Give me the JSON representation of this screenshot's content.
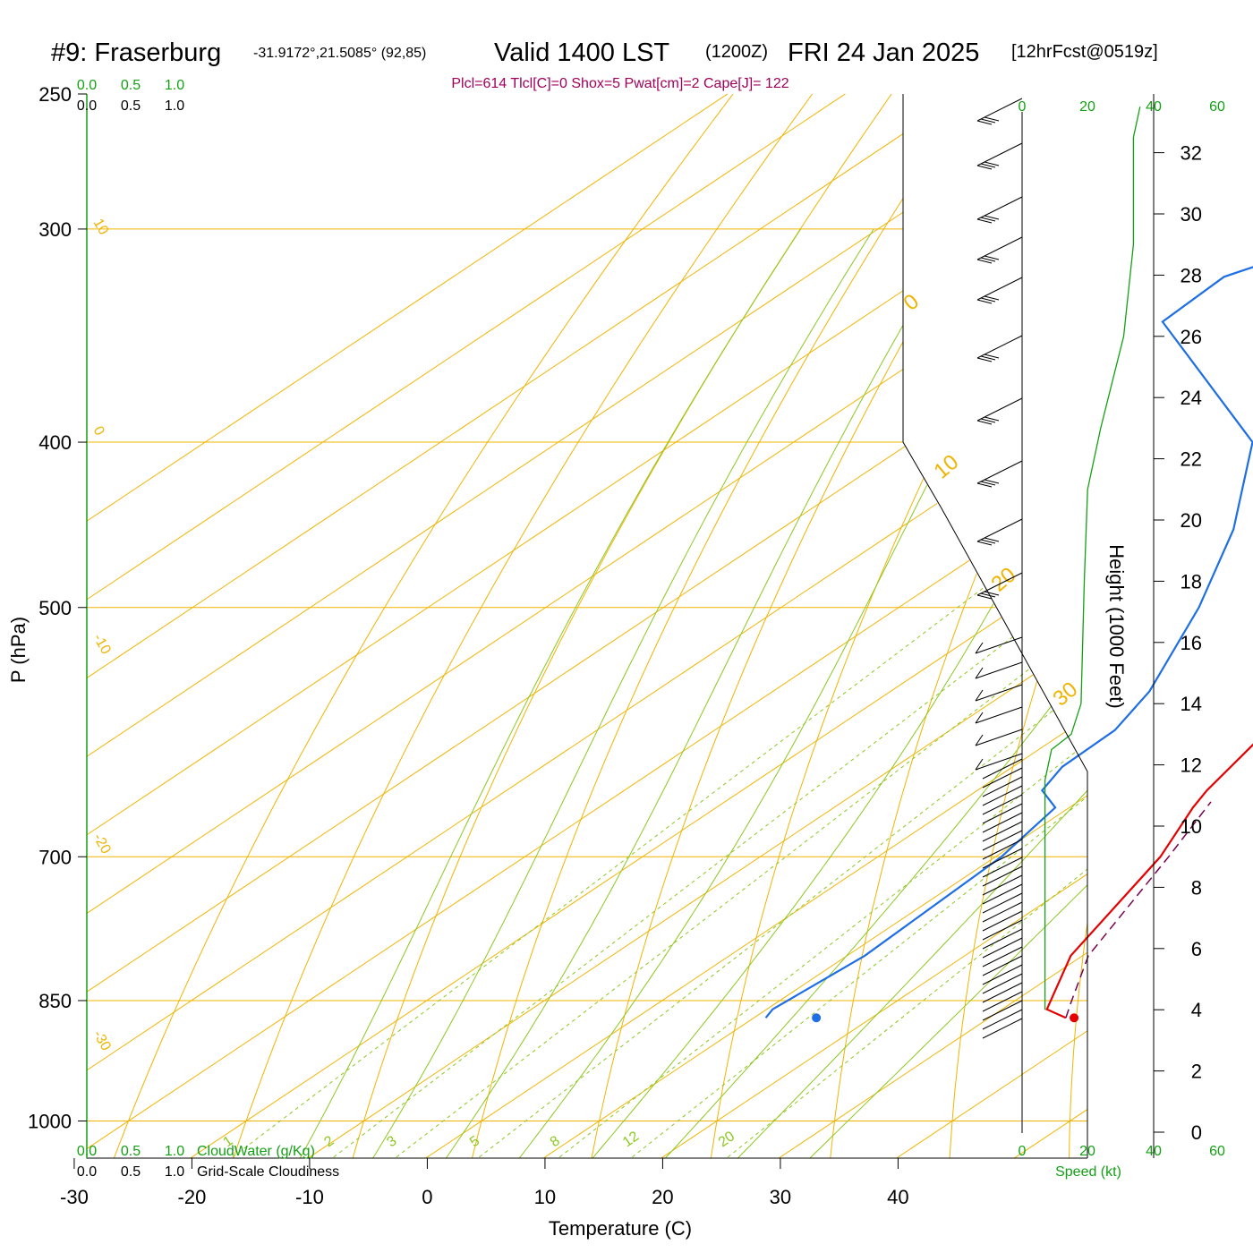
{
  "title": {
    "station": "#9: Fraserburg",
    "coords": "-31.9172°,21.5085° (92,85)",
    "valid": "Valid 1400 LST",
    "utc": "(1200Z)",
    "date": "FRI 24 Jan 2025",
    "forecast": "[12hrFcst@0519z]"
  },
  "indices": "Plcl=614 Tlcl[C]=0 Shox=5 Pwat[cm]=2 Cape[J]= 122",
  "axes": {
    "xlabel": "Temperature (C)",
    "ylabel": "P (hPa)",
    "height_label": "Height (1000 Feet)",
    "speed_label": "Speed (kt)",
    "cloudwater_label": "CloudWater (g/Kg)",
    "cloudiness_label": "Grid-Scale Cloudiness"
  },
  "colors": {
    "isotherm": "#f0b400",
    "adiabat": "#8cc81e",
    "temperature": "#e60000",
    "dewpoint": "#1e6ee6",
    "parcel": "#780050",
    "green_label": "#14a014",
    "wind": "#000000"
  },
  "chart_data": {
    "type": "skew-t",
    "x_ticks": [
      -30,
      -20,
      -10,
      0,
      10,
      20,
      30,
      40
    ],
    "p_ticks": [
      250,
      300,
      400,
      500,
      700,
      850,
      1000
    ],
    "xlim": [
      -33,
      47
    ],
    "ylim": [
      1050,
      250
    ],
    "height_ticks": [
      0,
      2,
      4,
      6,
      8,
      10,
      12,
      14,
      16,
      18,
      20,
      22,
      24,
      26,
      28,
      30,
      32
    ],
    "top_scale_green": [
      "0.0",
      "0.5",
      "1.0"
    ],
    "top_scale_black": [
      "0.0",
      "0.5",
      "1.0"
    ],
    "bottom_scale_green": [
      "0.0",
      "0.5",
      "1.0"
    ],
    "bottom_scale_black": [
      "0.0",
      "0.5",
      "1.0"
    ],
    "speed_ticks_top": [
      "0",
      "20",
      "40",
      "60"
    ],
    "speed_ticks_bottom": [
      "0",
      "20",
      "40",
      "60"
    ],
    "isotherm_labels": [
      "10",
      "0",
      "10",
      "20",
      "30",
      "0",
      "-10",
      "-20",
      "-30"
    ],
    "mixing_ratio_labels": [
      "1",
      "2",
      "3",
      "5",
      "8",
      "12",
      "20"
    ],
    "series": [
      {
        "name": "Temperature",
        "points": [
          {
            "p": 870,
            "t": 36.5
          },
          {
            "p": 860,
            "t": 33.8
          },
          {
            "p": 800,
            "t": 29.0
          },
          {
            "p": 700,
            "t": 24.0
          },
          {
            "p": 655,
            "t": 20.5
          },
          {
            "p": 640,
            "t": 19.5
          },
          {
            "p": 600,
            "t": 17.5
          },
          {
            "p": 560,
            "t": 15.0
          },
          {
            "p": 520,
            "t": 12.3
          },
          {
            "p": 500,
            "t": 10.3
          },
          {
            "p": 450,
            "t": 4.5
          },
          {
            "p": 400,
            "t": -1.5
          },
          {
            "p": 350,
            "t": -9.5
          },
          {
            "p": 300,
            "t": -20.0
          },
          {
            "p": 250,
            "t": -31.0
          }
        ]
      },
      {
        "name": "Dewpoint",
        "points": [
          {
            "p": 870,
            "t": 11.0
          },
          {
            "p": 860,
            "t": 10.5
          },
          {
            "p": 800,
            "t": 11.5
          },
          {
            "p": 700,
            "t": 10.5
          },
          {
            "p": 655,
            "t": 8.8
          },
          {
            "p": 640,
            "t": 5.5
          },
          {
            "p": 620,
            "t": 4.2
          },
          {
            "p": 590,
            "t": 4.0
          },
          {
            "p": 560,
            "t": 2.0
          },
          {
            "p": 500,
            "t": -4.5
          },
          {
            "p": 450,
            "t": -11.5
          },
          {
            "p": 400,
            "t": -21.0
          },
          {
            "p": 340,
            "t": -44.0
          },
          {
            "p": 320,
            "t": -44.5
          },
          {
            "p": 300,
            "t": -38.5
          },
          {
            "p": 280,
            "t": -38.0
          },
          {
            "p": 260,
            "t": -40.0
          },
          {
            "p": 250,
            "t": -42.0
          }
        ]
      },
      {
        "name": "Parcel",
        "points": [
          {
            "p": 870,
            "t": 36.5
          },
          {
            "p": 850,
            "t": 34.8
          },
          {
            "p": 800,
            "t": 30.5
          },
          {
            "p": 700,
            "t": 24.7
          },
          {
            "p": 650,
            "t": 21.3
          }
        ]
      }
    ],
    "surface_points": [
      {
        "name": "surface-temperature",
        "p": 870,
        "t": 37.2
      },
      {
        "name": "surface-dewpoint",
        "p": 870,
        "t": 15.3
      }
    ],
    "wind_speed_profile_kt": [
      {
        "height_kft": 4.0,
        "speed": 7
      },
      {
        "height_kft": 8.0,
        "speed": 7
      },
      {
        "height_kft": 11.5,
        "speed": 7
      },
      {
        "height_kft": 12.5,
        "speed": 9
      },
      {
        "height_kft": 13.0,
        "speed": 15
      },
      {
        "height_kft": 14.0,
        "speed": 18
      },
      {
        "height_kft": 18.0,
        "speed": 19
      },
      {
        "height_kft": 21.0,
        "speed": 20
      },
      {
        "height_kft": 23.0,
        "speed": 24
      },
      {
        "height_kft": 26.0,
        "speed": 31
      },
      {
        "height_kft": 29.0,
        "speed": 34
      },
      {
        "height_kft": 32.5,
        "speed": 34
      },
      {
        "height_kft": 33.5,
        "speed": 36
      }
    ]
  }
}
